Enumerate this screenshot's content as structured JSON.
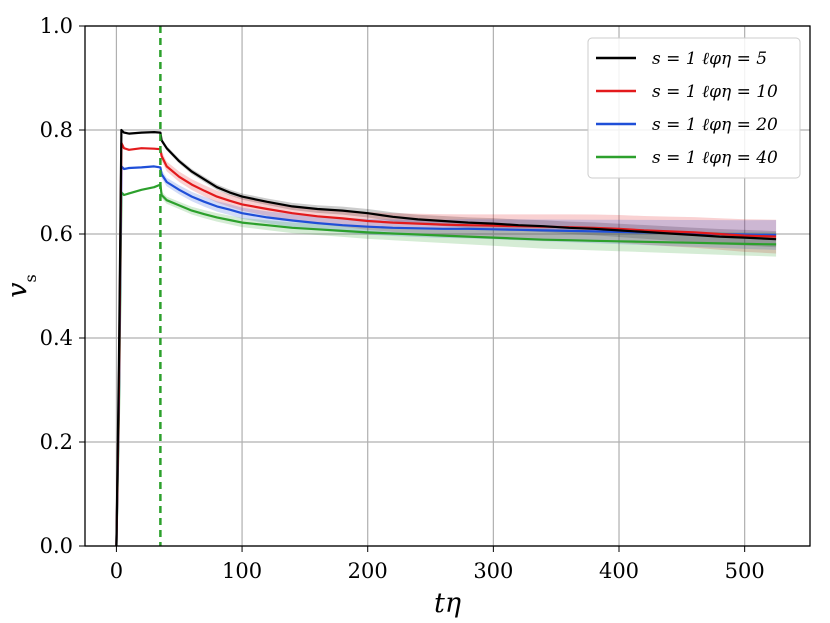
{
  "chart_data": {
    "type": "line",
    "xlabel": "tη",
    "ylabel": "v_s",
    "xlim": [
      -25,
      552
    ],
    "ylim": [
      0.0,
      1.0
    ],
    "x_ticks": [
      0,
      100,
      200,
      300,
      400,
      500
    ],
    "x_tick_labels": [
      "0",
      "100",
      "200",
      "300",
      "400",
      "500"
    ],
    "y_ticks": [
      0.0,
      0.2,
      0.4,
      0.6,
      0.8,
      1.0
    ],
    "y_tick_labels": [
      "0.0",
      "0.2",
      "0.4",
      "0.6",
      "0.8",
      "1.0"
    ],
    "grid": true,
    "legend_position": "top-right",
    "vline": {
      "x": 35,
      "style": "dashed",
      "color": "#2ca02c"
    },
    "series": [
      {
        "name": "s = 1 ℓφη = 5",
        "color": "#000000",
        "points": [
          [
            0,
            0.0
          ],
          [
            2,
            0.35
          ],
          [
            4,
            0.8
          ],
          [
            6,
            0.795
          ],
          [
            10,
            0.793
          ],
          [
            20,
            0.795
          ],
          [
            30,
            0.796
          ],
          [
            35,
            0.795
          ],
          [
            36,
            0.78
          ],
          [
            40,
            0.765
          ],
          [
            50,
            0.74
          ],
          [
            60,
            0.72
          ],
          [
            70,
            0.705
          ],
          [
            80,
            0.69
          ],
          [
            90,
            0.68
          ],
          [
            100,
            0.672
          ],
          [
            120,
            0.662
          ],
          [
            140,
            0.653
          ],
          [
            160,
            0.648
          ],
          [
            180,
            0.645
          ],
          [
            200,
            0.64
          ],
          [
            220,
            0.633
          ],
          [
            240,
            0.628
          ],
          [
            260,
            0.625
          ],
          [
            280,
            0.622
          ],
          [
            300,
            0.62
          ],
          [
            320,
            0.617
          ],
          [
            340,
            0.615
          ],
          [
            360,
            0.612
          ],
          [
            380,
            0.61
          ],
          [
            400,
            0.607
          ],
          [
            420,
            0.604
          ],
          [
            440,
            0.601
          ],
          [
            460,
            0.598
          ],
          [
            480,
            0.595
          ],
          [
            500,
            0.593
          ],
          [
            525,
            0.59
          ]
        ],
        "band": 0.012
      },
      {
        "name": "s = 1 ℓφη = 10",
        "color": "#e31a1c",
        "points": [
          [
            0,
            0.0
          ],
          [
            2,
            0.3
          ],
          [
            4,
            0.775
          ],
          [
            6,
            0.765
          ],
          [
            10,
            0.762
          ],
          [
            20,
            0.765
          ],
          [
            30,
            0.764
          ],
          [
            35,
            0.763
          ],
          [
            36,
            0.75
          ],
          [
            40,
            0.73
          ],
          [
            50,
            0.71
          ],
          [
            60,
            0.695
          ],
          [
            70,
            0.683
          ],
          [
            80,
            0.672
          ],
          [
            90,
            0.664
          ],
          [
            100,
            0.657
          ],
          [
            120,
            0.648
          ],
          [
            140,
            0.64
          ],
          [
            160,
            0.634
          ],
          [
            180,
            0.63
          ],
          [
            200,
            0.625
          ],
          [
            220,
            0.622
          ],
          [
            240,
            0.62
          ],
          [
            260,
            0.618
          ],
          [
            280,
            0.617
          ],
          [
            300,
            0.616
          ],
          [
            320,
            0.615
          ],
          [
            340,
            0.614
          ],
          [
            360,
            0.613
          ],
          [
            380,
            0.612
          ],
          [
            400,
            0.61
          ],
          [
            420,
            0.607
          ],
          [
            440,
            0.605
          ],
          [
            460,
            0.603
          ],
          [
            480,
            0.6
          ],
          [
            500,
            0.597
          ],
          [
            525,
            0.595
          ]
        ],
        "band": 0.025
      },
      {
        "name": "s = 1 ℓφη = 20",
        "color": "#1f4fd8",
        "points": [
          [
            0,
            0.0
          ],
          [
            2,
            0.28
          ],
          [
            4,
            0.73
          ],
          [
            6,
            0.725
          ],
          [
            10,
            0.727
          ],
          [
            20,
            0.728
          ],
          [
            30,
            0.73
          ],
          [
            35,
            0.728
          ],
          [
            36,
            0.715
          ],
          [
            40,
            0.7
          ],
          [
            50,
            0.685
          ],
          [
            60,
            0.672
          ],
          [
            70,
            0.662
          ],
          [
            80,
            0.653
          ],
          [
            90,
            0.647
          ],
          [
            100,
            0.64
          ],
          [
            120,
            0.632
          ],
          [
            140,
            0.626
          ],
          [
            160,
            0.621
          ],
          [
            180,
            0.617
          ],
          [
            200,
            0.614
          ],
          [
            220,
            0.612
          ],
          [
            240,
            0.611
          ],
          [
            260,
            0.61
          ],
          [
            280,
            0.61
          ],
          [
            300,
            0.609
          ],
          [
            320,
            0.608
          ],
          [
            340,
            0.607
          ],
          [
            360,
            0.606
          ],
          [
            380,
            0.605
          ],
          [
            400,
            0.604
          ],
          [
            420,
            0.603
          ],
          [
            440,
            0.602
          ],
          [
            460,
            0.601
          ],
          [
            480,
            0.6
          ],
          [
            500,
            0.599
          ],
          [
            525,
            0.598
          ]
        ],
        "band": 0.022
      },
      {
        "name": "s = 1 ℓφη = 40",
        "color": "#2ca02c",
        "points": [
          [
            0,
            0.0
          ],
          [
            2,
            0.25
          ],
          [
            4,
            0.68
          ],
          [
            6,
            0.675
          ],
          [
            10,
            0.678
          ],
          [
            20,
            0.685
          ],
          [
            30,
            0.69
          ],
          [
            35,
            0.695
          ],
          [
            36,
            0.675
          ],
          [
            40,
            0.665
          ],
          [
            50,
            0.655
          ],
          [
            60,
            0.645
          ],
          [
            70,
            0.638
          ],
          [
            80,
            0.632
          ],
          [
            90,
            0.627
          ],
          [
            100,
            0.622
          ],
          [
            120,
            0.617
          ],
          [
            140,
            0.612
          ],
          [
            160,
            0.609
          ],
          [
            180,
            0.606
          ],
          [
            200,
            0.603
          ],
          [
            220,
            0.601
          ],
          [
            240,
            0.599
          ],
          [
            260,
            0.597
          ],
          [
            280,
            0.595
          ],
          [
            300,
            0.593
          ],
          [
            320,
            0.591
          ],
          [
            340,
            0.589
          ],
          [
            360,
            0.588
          ],
          [
            380,
            0.587
          ],
          [
            400,
            0.586
          ],
          [
            420,
            0.585
          ],
          [
            440,
            0.584
          ],
          [
            460,
            0.583
          ],
          [
            480,
            0.582
          ],
          [
            500,
            0.581
          ],
          [
            525,
            0.58
          ]
        ],
        "band": 0.018
      }
    ]
  }
}
